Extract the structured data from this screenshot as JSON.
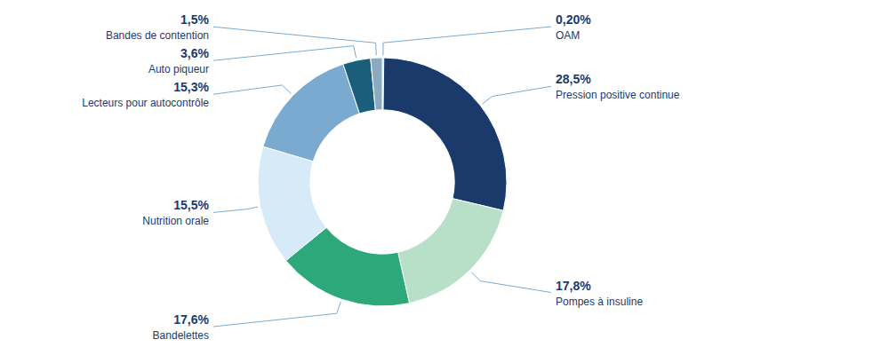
{
  "chart_data": {
    "type": "donut",
    "categories": [
      "OAM",
      "Pression positive continue",
      "Pompes à insuline",
      "Bandelettes",
      "Nutrition orale",
      "Lecteurs pour autocontrôle",
      "Auto piqueur",
      "Bandes de contention"
    ],
    "values": [
      0.2,
      28.5,
      17.8,
      17.6,
      15.5,
      15.3,
      3.6,
      1.5
    ],
    "value_labels": [
      "0,20%",
      "28,5%",
      "17,8%",
      "17,6%",
      "15,5%",
      "15,3%",
      "3,6%",
      "1,5%"
    ],
    "colors": [
      "#7ec8c8",
      "#1a3a6b",
      "#b8dfc8",
      "#2da87a",
      "#d6eaf8",
      "#7aaacf",
      "#1b5e7b",
      "#8baabf"
    ],
    "data_labels": true
  }
}
